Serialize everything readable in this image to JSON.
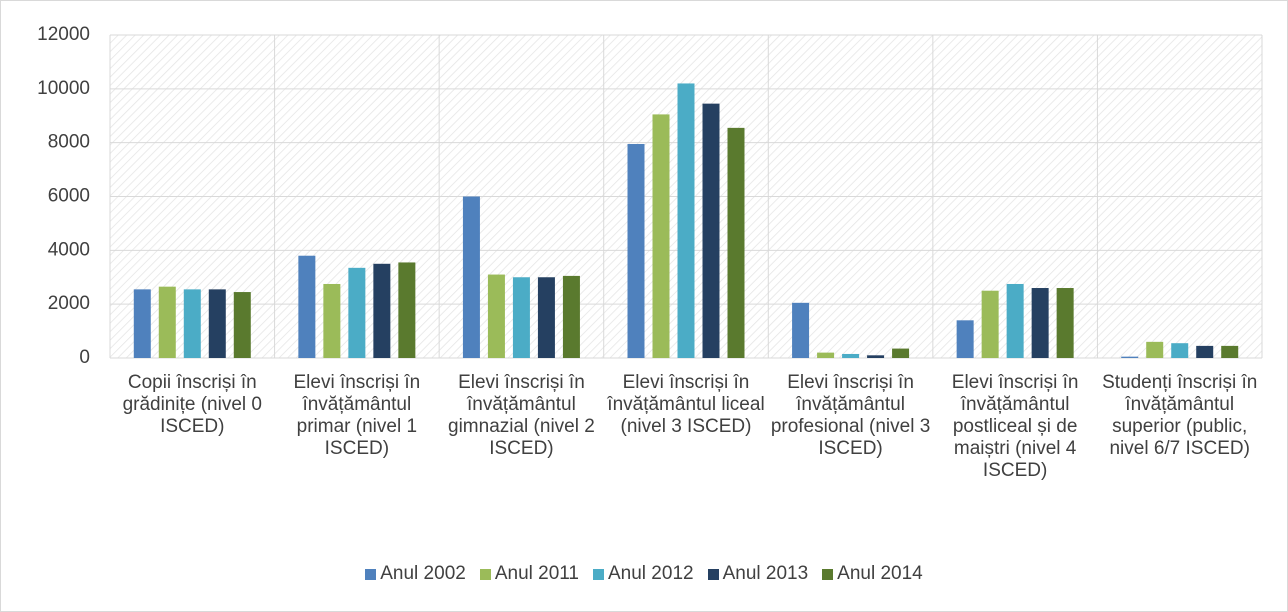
{
  "chart_data": {
    "type": "bar",
    "categories": [
      "Copii înscriși în grădinițe (nivel 0 ISCED)",
      "Elevi înscriși în învățământul primar (nivel 1 ISCED)",
      "Elevi înscriși în învățământul gimnazial (nivel 2 ISCED)",
      "Elevi înscriși în învățământul liceal (nivel 3 ISCED)",
      "Elevi înscriși în învățământul profesional (nivel 3 ISCED)",
      "Elevi înscriși în învățământul postliceal și de maiștri (nivel 4 ISCED)",
      "Studenți înscriși în învățământul superior (public, nivel 6/7 ISCED)"
    ],
    "series": [
      {
        "name": "Anul 2002",
        "color": "#4f81bd",
        "values": [
          2550,
          3800,
          6000,
          7950,
          2050,
          1400,
          50
        ]
      },
      {
        "name": "Anul 2011",
        "color": "#9bbb59",
        "values": [
          2650,
          2750,
          3100,
          9050,
          200,
          2500,
          600
        ]
      },
      {
        "name": "Anul 2012",
        "color": "#4bacc6",
        "values": [
          2550,
          3350,
          3000,
          10200,
          150,
          2750,
          550
        ]
      },
      {
        "name": "Anul 2013",
        "color": "#254061",
        "values": [
          2550,
          3500,
          3000,
          9450,
          100,
          2600,
          450
        ]
      },
      {
        "name": "Anul 2014",
        "color": "#5a7a2e",
        "values": [
          2450,
          3550,
          3050,
          8550,
          350,
          2600,
          450
        ]
      }
    ],
    "ylim": [
      0,
      12000
    ],
    "yticks": [
      0,
      2000,
      4000,
      6000,
      8000,
      10000,
      12000
    ],
    "grid": true,
    "legend": "bottom"
  }
}
